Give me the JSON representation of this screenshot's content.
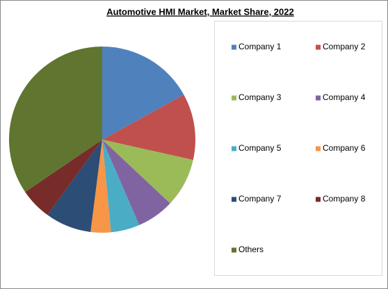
{
  "chart_data": {
    "type": "pie",
    "title": "Automotive HMI Market, Market Share, 2022",
    "categories": [
      "Company 1",
      "Company 2",
      "Company 3",
      "Company 4",
      "Company 5",
      "Company 6",
      "Company 7",
      "Company 8",
      "Others"
    ],
    "values": [
      17,
      11.5,
      8.5,
      6.5,
      5,
      3.5,
      8,
      5.5,
      34.5
    ],
    "colors": [
      "#4f81bd",
      "#c0504d",
      "#9bbb59",
      "#8064a2",
      "#4bacc6",
      "#f79646",
      "#2c4d75",
      "#772c2a",
      "#5f7530"
    ],
    "legend": "right"
  }
}
